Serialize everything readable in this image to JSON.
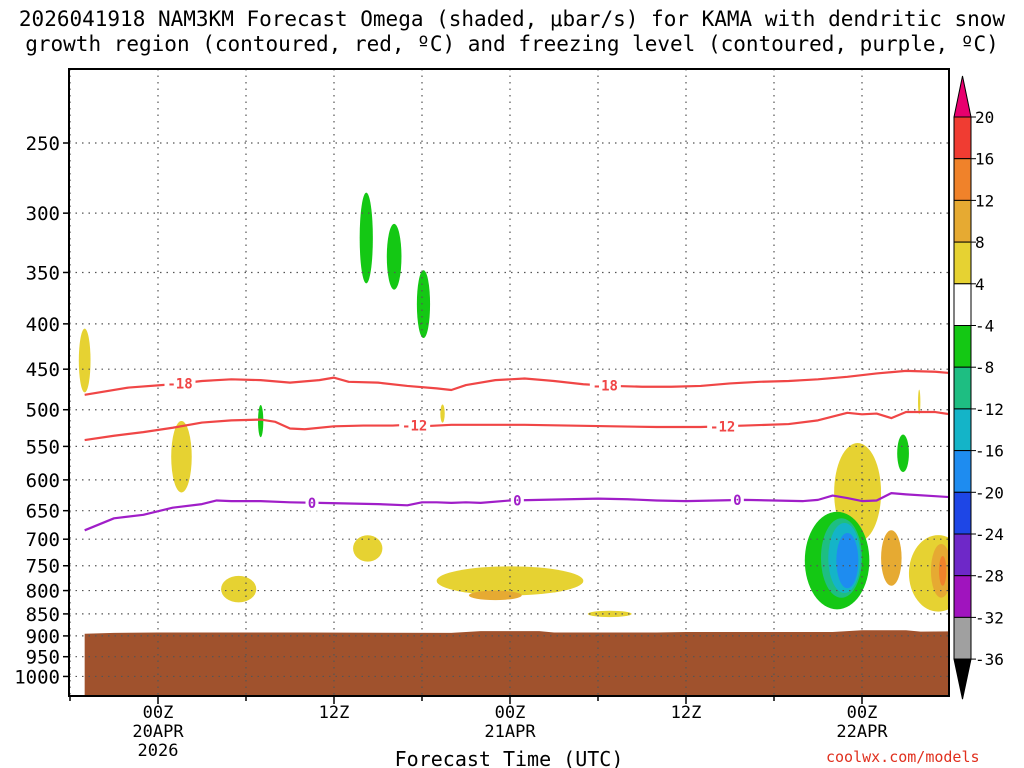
{
  "title_line1": "2026041918 NAM3KM Forecast Omega (shaded, μbar/s) for KAMA with dendritic snow",
  "title_line2": "growth region (contoured, red, ºC) and freezing level (contoured, purple, ºC)",
  "credit": "coolwx.com/models",
  "chart_data": {
    "type": "contour",
    "xlabel": "Forecast Time (UTC)",
    "ylabel": "",
    "x_range_hours": [
      -5,
      55
    ],
    "y_range_hpa": [
      200,
      1025
    ],
    "x_ticks": [
      {
        "hour": 0,
        "lines": [
          "00Z",
          "20APR",
          "2026"
        ]
      },
      {
        "hour": 12,
        "lines": [
          "12Z"
        ]
      },
      {
        "hour": 24,
        "lines": [
          "00Z",
          "21APR"
        ]
      },
      {
        "hour": 36,
        "lines": [
          "12Z"
        ]
      },
      {
        "hour": 48,
        "lines": [
          "00Z",
          "22APR"
        ]
      }
    ],
    "y_ticks": [
      250,
      300,
      350,
      400,
      450,
      500,
      550,
      600,
      650,
      700,
      750,
      800,
      850,
      900,
      950,
      1000
    ],
    "grid": true,
    "colorbar": {
      "units": "μbar/s",
      "labels": [
        "20",
        "16",
        "12",
        "8",
        "4",
        "-4",
        "-8",
        "-12",
        "-16",
        "-20",
        "-24",
        "-28",
        "-32",
        "-36"
      ],
      "bins": [
        {
          "from": 20,
          "to": 24,
          "color": "#e8006e"
        },
        {
          "from": 16,
          "to": 20,
          "color": "#f03c32"
        },
        {
          "from": 12,
          "to": 16,
          "color": "#f0822a"
        },
        {
          "from": 8,
          "to": 12,
          "color": "#e6aa32"
        },
        {
          "from": 4,
          "to": 8,
          "color": "#e6d232"
        },
        {
          "from": -4,
          "to": 4,
          "color": "#ffffff"
        },
        {
          "from": -8,
          "to": -4,
          "color": "#14c814"
        },
        {
          "from": -12,
          "to": -8,
          "color": "#1ebe82"
        },
        {
          "from": -16,
          "to": -12,
          "color": "#14b4c8"
        },
        {
          "from": -20,
          "to": -16,
          "color": "#1e8cf0"
        },
        {
          "from": -24,
          "to": -20,
          "color": "#1e46e6"
        },
        {
          "from": -28,
          "to": -24,
          "color": "#6e28c8"
        },
        {
          "from": -32,
          "to": -28,
          "color": "#a014be"
        },
        {
          "from": -36,
          "to": -32,
          "color": "#a0a0a0"
        },
        {
          "from": -40,
          "to": -36,
          "color": "#000000"
        }
      ]
    },
    "contours": [
      {
        "name": "minus18-line",
        "label": "-18",
        "color": "#f04646",
        "label_hours": [
          1.5,
          30.5
        ],
        "points": [
          [
            -5,
            481
          ],
          [
            -2,
            472
          ],
          [
            1,
            468
          ],
          [
            3,
            464
          ],
          [
            5,
            462
          ],
          [
            7,
            463
          ],
          [
            9,
            466
          ],
          [
            11,
            463
          ],
          [
            12,
            460
          ],
          [
            13,
            465
          ],
          [
            15,
            466
          ],
          [
            17,
            470
          ],
          [
            19,
            473
          ],
          [
            20,
            475
          ],
          [
            21,
            469
          ],
          [
            23,
            463
          ],
          [
            25,
            461
          ],
          [
            27,
            464
          ],
          [
            29,
            468
          ],
          [
            31,
            470
          ],
          [
            33,
            471
          ],
          [
            35,
            471
          ],
          [
            37,
            470
          ],
          [
            39,
            467
          ],
          [
            41,
            465
          ],
          [
            43,
            464
          ],
          [
            45,
            462
          ],
          [
            47,
            459
          ],
          [
            49,
            455
          ],
          [
            51,
            452
          ],
          [
            53,
            453
          ],
          [
            55,
            456
          ]
        ]
      },
      {
        "name": "minus12-line",
        "label": "-12",
        "color": "#f04646",
        "label_hours": [
          17.5,
          38.5
        ],
        "points": [
          [
            -5,
            541
          ],
          [
            -3,
            535
          ],
          [
            -1,
            530
          ],
          [
            1,
            524
          ],
          [
            3,
            517
          ],
          [
            5,
            514
          ],
          [
            7,
            513
          ],
          [
            8,
            516
          ],
          [
            9,
            525
          ],
          [
            10,
            526
          ],
          [
            12,
            522
          ],
          [
            14,
            521
          ],
          [
            16,
            521
          ],
          [
            17,
            520
          ],
          [
            18,
            522
          ],
          [
            20,
            520
          ],
          [
            22,
            520
          ],
          [
            25,
            520
          ],
          [
            28,
            521
          ],
          [
            31,
            522
          ],
          [
            34,
            523
          ],
          [
            37,
            523
          ],
          [
            40,
            521
          ],
          [
            43,
            519
          ],
          [
            45,
            514
          ],
          [
            47,
            504
          ],
          [
            48,
            506
          ],
          [
            49,
            505
          ],
          [
            50,
            511
          ],
          [
            51,
            503
          ],
          [
            53,
            503
          ],
          [
            55,
            509
          ]
        ]
      },
      {
        "name": "freezing-level",
        "label": "0",
        "color": "#a01ec8",
        "label_hours": [
          10.5,
          24.5,
          39.5
        ],
        "points": [
          [
            -5,
            684
          ],
          [
            -3,
            663
          ],
          [
            -1,
            657
          ],
          [
            1,
            645
          ],
          [
            3,
            639
          ],
          [
            4,
            633
          ],
          [
            5,
            634
          ],
          [
            7,
            634
          ],
          [
            9,
            636
          ],
          [
            11,
            637
          ],
          [
            13,
            638
          ],
          [
            15,
            639
          ],
          [
            17,
            641
          ],
          [
            18,
            636
          ],
          [
            19,
            636
          ],
          [
            20,
            637
          ],
          [
            21,
            636
          ],
          [
            22,
            637
          ],
          [
            24,
            633
          ],
          [
            26,
            632
          ],
          [
            28,
            631
          ],
          [
            30,
            630
          ],
          [
            32,
            631
          ],
          [
            34,
            633
          ],
          [
            36,
            634
          ],
          [
            38,
            633
          ],
          [
            40,
            632
          ],
          [
            42,
            633
          ],
          [
            44,
            634
          ],
          [
            45,
            632
          ],
          [
            46,
            625
          ],
          [
            47,
            629
          ],
          [
            48,
            634
          ],
          [
            49,
            633
          ],
          [
            50,
            621
          ],
          [
            51,
            623
          ],
          [
            53,
            626
          ],
          [
            55,
            629
          ]
        ]
      }
    ],
    "regions": [
      {
        "name": "ascent-300-a",
        "value": -6,
        "center": [
          14.2,
          320
        ],
        "rx": 0.45,
        "ry": 40
      },
      {
        "name": "ascent-300-b",
        "value": -6,
        "center": [
          16.1,
          336
        ],
        "rx": 0.5,
        "ry": 30
      },
      {
        "name": "ascent-350",
        "value": -6,
        "center": [
          18.1,
          380
        ],
        "rx": 0.45,
        "ry": 35
      },
      {
        "name": "ascent-520",
        "value": -6,
        "center": [
          7.0,
          515
        ],
        "rx": 0.18,
        "ry": 22
      },
      {
        "name": "ascent-550-late",
        "value": -6,
        "center": [
          50.8,
          560
        ],
        "rx": 0.4,
        "ry": 28
      },
      {
        "name": "descent-440-edge",
        "value": 5,
        "center": [
          -5,
          440
        ],
        "rx": 0.4,
        "ry": 38
      },
      {
        "name": "descent-550-a",
        "value": 5,
        "center": [
          1.6,
          565
        ],
        "rx": 0.7,
        "ry": 55
      },
      {
        "name": "descent-500-b",
        "value": 5,
        "center": [
          19.4,
          505
        ],
        "rx": 0.15,
        "ry": 12
      },
      {
        "name": "descent-700-a",
        "value": 5,
        "center": [
          14.3,
          717
        ],
        "rx": 1.0,
        "ry": 25
      },
      {
        "name": "descent-800-a",
        "value": 5,
        "center": [
          5.5,
          797
        ],
        "rx": 1.2,
        "ry": 28
      },
      {
        "name": "descent-780-b",
        "value": 5,
        "center": [
          24.0,
          780
        ],
        "rx": 5.0,
        "ry": 30
      },
      {
        "name": "descent-780-b-core",
        "value": 9,
        "center": [
          23.0,
          810
        ],
        "rx": 1.8,
        "ry": 10
      },
      {
        "name": "descent-850-c",
        "value": 5,
        "center": [
          30.8,
          850
        ],
        "rx": 1.5,
        "ry": 7
      },
      {
        "name": "descent-500-c",
        "value": 5,
        "center": [
          51.9,
          490
        ],
        "rx": 0.08,
        "ry": 16
      },
      {
        "name": "descent-640-d",
        "value": 5,
        "center": [
          47.7,
          620
        ],
        "rx": 1.6,
        "ry": 85
      },
      {
        "name": "descent-700-d",
        "value": 5,
        "center": [
          53.2,
          765
        ],
        "rx": 2.0,
        "ry": 80
      },
      {
        "name": "descent-700-d-core",
        "value": 9,
        "center": [
          50.0,
          735
        ],
        "rx": 0.7,
        "ry": 55
      },
      {
        "name": "descent-740-e-core",
        "value": 10,
        "center": [
          53.4,
          760
        ],
        "rx": 0.7,
        "ry": 55
      },
      {
        "name": "descent-760-e-max",
        "value": 14,
        "center": [
          53.5,
          760
        ],
        "rx": 0.25,
        "ry": 30
      },
      {
        "name": "strong-ascent-outer",
        "value": -6,
        "center": [
          46.3,
          740
        ],
        "rx": 2.2,
        "ry": 100
      },
      {
        "name": "strong-ascent-ring",
        "value": -10,
        "center": [
          46.6,
          735
        ],
        "rx": 1.4,
        "ry": 80
      },
      {
        "name": "strong-ascent-inner",
        "value": -14,
        "center": [
          46.8,
          735
        ],
        "rx": 1.1,
        "ry": 70
      },
      {
        "name": "strong-ascent-core",
        "value": -18,
        "center": [
          47.0,
          740
        ],
        "rx": 0.75,
        "ry": 55
      }
    ],
    "terrain": {
      "name": "ground-below-surface",
      "color": "#a0522d",
      "top_hpa": 892,
      "points": [
        [
          -5,
          895
        ],
        [
          -3,
          893
        ],
        [
          0,
          892
        ],
        [
          10,
          892
        ],
        [
          20,
          893
        ],
        [
          22,
          889
        ],
        [
          26,
          889
        ],
        [
          27,
          892
        ],
        [
          34,
          892
        ],
        [
          36,
          891
        ],
        [
          46,
          891
        ],
        [
          48,
          887
        ],
        [
          51,
          887
        ],
        [
          52,
          890
        ],
        [
          55,
          889
        ]
      ]
    }
  }
}
